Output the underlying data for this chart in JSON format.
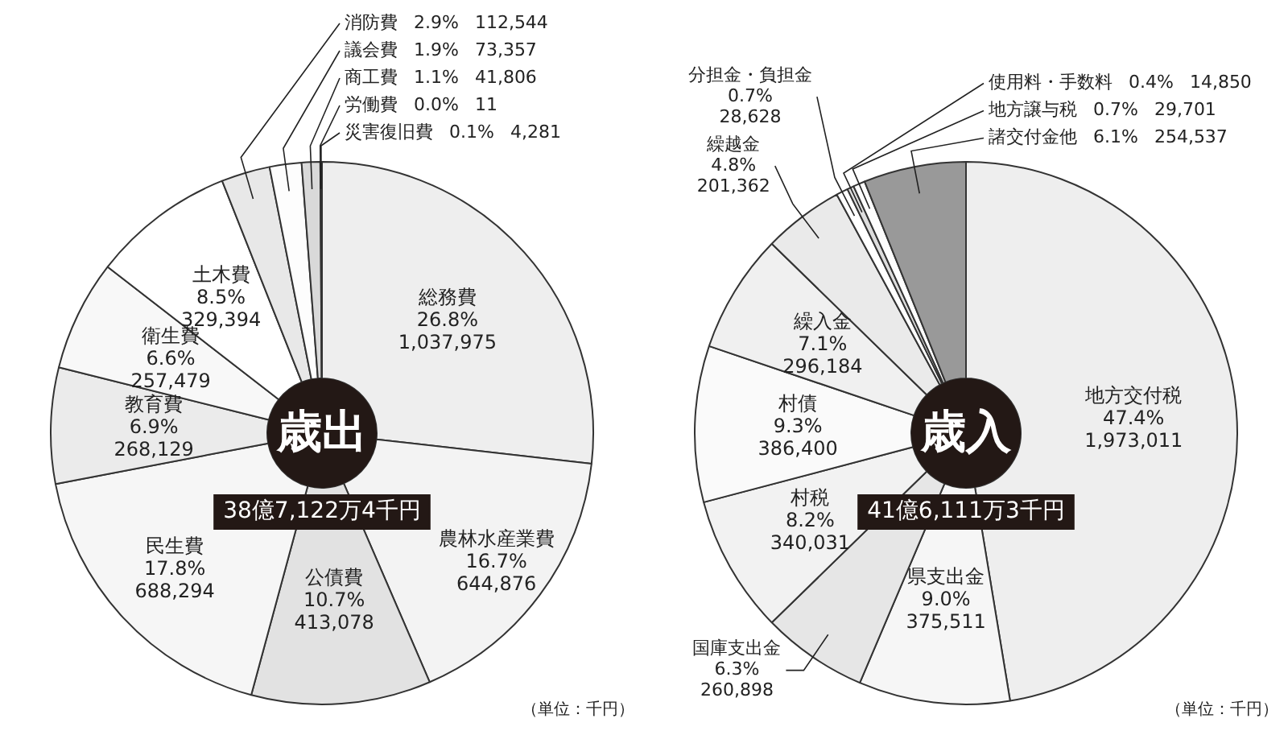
{
  "chart_data": [
    {
      "type": "donut",
      "title": "歳出",
      "subtitle": "38億7,122万4千円",
      "categories": [
        "総務費",
        "農林水産業費",
        "公債費",
        "民生費",
        "教育費",
        "衛生費",
        "土木費",
        "消防費",
        "議会費",
        "商工費",
        "労働費",
        "災害復旧費"
      ],
      "values": [
        26.8,
        16.7,
        10.7,
        17.8,
        6.9,
        6.6,
        8.5,
        2.9,
        1.9,
        1.1,
        0.0,
        0.1
      ],
      "value_labels": [
        "26.8%",
        "16.7%",
        "10.7%",
        "17.8%",
        "6.9%",
        "6.6%",
        "8.5%",
        "2.9%",
        "1.9%",
        "1.1%",
        "0.0%",
        "0.1%"
      ],
      "colors": [
        "#eeeeee",
        "#f3f3f3",
        "#e2e2e2",
        "#f6f6f6",
        "#ebebeb",
        "#f8f8f8",
        "#ffffff",
        "#e8e8e8",
        "#fdfdfd",
        "#d9d9d9",
        "#bbbbbb",
        "#999999"
      ],
      "annotations": [
        {
          "text": "1,037,975",
          "x": "総務費"
        },
        {
          "text": "644,876",
          "x": "農林水産業費"
        },
        {
          "text": "413,078",
          "x": "公債費"
        },
        {
          "text": "688,294",
          "x": "民生費"
        },
        {
          "text": "268,129",
          "x": "教育費"
        },
        {
          "text": "257,479",
          "x": "衛生費"
        },
        {
          "text": "329,394",
          "x": "土木費"
        },
        {
          "text": "112,544",
          "x": "消防費"
        },
        {
          "text": "73,357",
          "x": "議会費"
        },
        {
          "text": "41,806",
          "x": "商工費"
        },
        {
          "text": "11",
          "x": "労働費"
        },
        {
          "text": "4,281",
          "x": "災害復旧費"
        },
        "（単位：千円）"
      ]
    },
    {
      "type": "donut",
      "title": "歳入",
      "subtitle": "41億6,111万3千円",
      "categories": [
        "地方交付税",
        "県支出金",
        "国庫支出金",
        "村税",
        "村債",
        "繰入金",
        "繰越金",
        "分担金・負担金",
        "使用料・手数料",
        "地方譲与税",
        "諸交付金他"
      ],
      "values": [
        47.4,
        9.0,
        6.3,
        8.2,
        9.3,
        7.1,
        4.8,
        0.7,
        0.4,
        0.7,
        6.1
      ],
      "value_labels": [
        "47.4%",
        "9.0%",
        "6.3%",
        "8.2%",
        "9.3%",
        "7.1%",
        "4.8%",
        "0.7%",
        "0.4%",
        "0.7%",
        "6.1%"
      ],
      "colors": [
        "#eeeeee",
        "#f6f6f6",
        "#e6e6e6",
        "#f2f2f2",
        "#fafafa",
        "#f0f0f0",
        "#eaeaea",
        "#ffffff",
        "#dddddd",
        "#fdfdfd",
        "#999999"
      ],
      "annotations": [
        {
          "text": "1,973,011",
          "x": "地方交付税"
        },
        {
          "text": "375,511",
          "x": "県支出金"
        },
        {
          "text": "260,898",
          "x": "国庫支出金"
        },
        {
          "text": "340,031",
          "x": "村税"
        },
        {
          "text": "386,400",
          "x": "村債"
        },
        {
          "text": "296,184",
          "x": "繰入金"
        },
        {
          "text": "201,362",
          "x": "繰越金"
        },
        {
          "text": "28,628",
          "x": "分担金・負担金"
        },
        {
          "text": "14,850",
          "x": "使用料・手数料"
        },
        {
          "text": "29,701",
          "x": "地方譲与税"
        },
        {
          "text": "254,537",
          "x": "諸交付金他"
        },
        "（単位：千円）"
      ]
    }
  ]
}
